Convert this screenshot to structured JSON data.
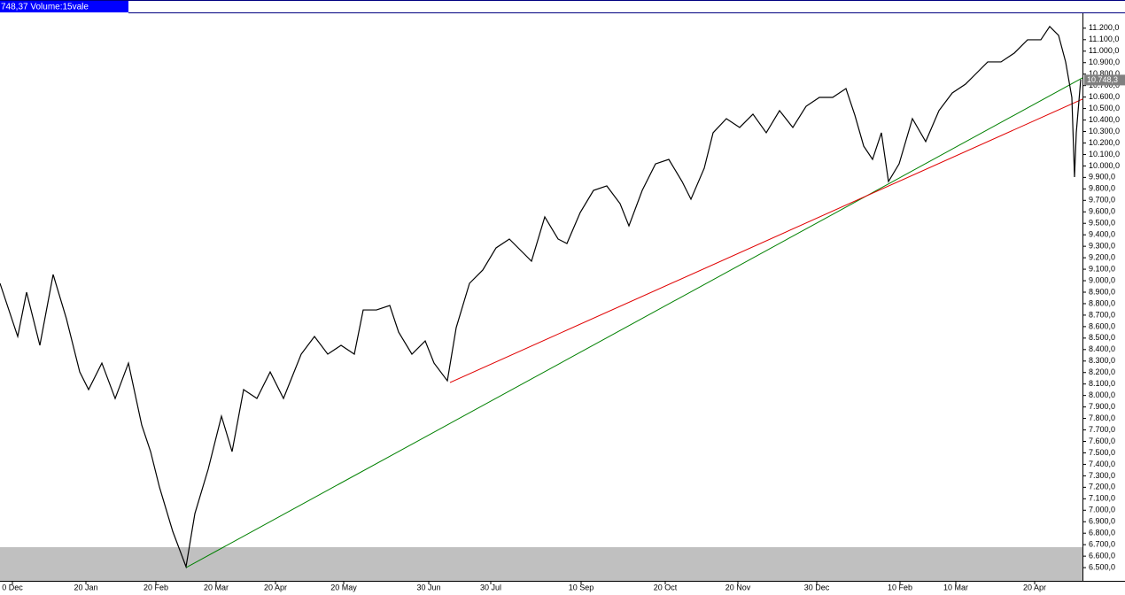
{
  "header": {
    "title": "748,37 Volume:15vale"
  },
  "chart_data": {
    "type": "line",
    "color": "#000000",
    "x": [
      0,
      4,
      8,
      12,
      18,
      24,
      30,
      36,
      40,
      46,
      52,
      58,
      64,
      68,
      72,
      78,
      84,
      88,
      94,
      100,
      104.8,
      110,
      116,
      122,
      128,
      136,
      142,
      148,
      154,
      160,
      164,
      170,
      176,
      180,
      186,
      192,
      196,
      202,
      206,
      212,
      218,
      224,
      230,
      236,
      240,
      246,
      252,
      256,
      262,
      268,
      274,
      280,
      284,
      290,
      296,
      302,
      308,
      312,
      318,
      322,
      328,
      334,
      340,
      346,
      352,
      358,
      364,
      370,
      376,
      382,
      386,
      390,
      394,
      398,
      401.2,
      406,
      412,
      418,
      424,
      430,
      436,
      440,
      446,
      452,
      458,
      464,
      470,
      474,
      478,
      481.2,
      484,
      485.2,
      486,
      488
    ],
    "values": [
      8977,
      8745,
      8514,
      8900,
      8437,
      9054,
      8668,
      8205,
      8051,
      8282,
      7974,
      8282,
      7742,
      7511,
      7202,
      6816,
      6508,
      6971,
      7357,
      7820,
      7511,
      8051,
      7974,
      8205,
      7974,
      8360,
      8514,
      8360,
      8437,
      8360,
      8745,
      8745,
      8784,
      8552,
      8360,
      8475,
      8282,
      8128,
      8591,
      8977,
      9093,
      9286,
      9363,
      9247,
      9170,
      9556,
      9363,
      9324,
      9594,
      9787,
      9826,
      9671,
      9478,
      9787,
      10018,
      10057,
      9864,
      9710,
      9980,
      10289,
      10412,
      10335,
      10451,
      10289,
      10482,
      10335,
      10520,
      10597,
      10597,
      10674,
      10443,
      10173,
      10057,
      10289,
      9864,
      10018,
      10412,
      10212,
      10482,
      10636,
      10713,
      10790,
      10906,
      10906,
      10983,
      11099,
      11099,
      11215,
      11138,
      10906,
      10597,
      9903,
      10289,
      10752
    ],
    "trendlines": [
      {
        "color": "#008000",
        "x": [
          84,
          488.8
        ],
        "values": [
          6500,
          10767
        ]
      },
      {
        "color": "#e00000",
        "x": [
          203.2,
          488.8
        ],
        "values": [
          8113,
          10582
        ]
      }
    ],
    "last_value_label": {
      "value": 10748.3,
      "label": "10.748,3"
    },
    "xlim": [
      0,
      488.8
    ],
    "ylim": [
      6385,
      11330
    ],
    "xticks": [
      {
        "value": 5.6,
        "label": "0 Dec"
      },
      {
        "value": 38.8,
        "label": "20 Jan"
      },
      {
        "value": 70.4,
        "label": "20 Feb"
      },
      {
        "value": 97.6,
        "label": "20 Mar"
      },
      {
        "value": 124.4,
        "label": "20 Apr"
      },
      {
        "value": 155.2,
        "label": "20 May"
      },
      {
        "value": 193.6,
        "label": "30 Jun"
      },
      {
        "value": 221.6,
        "label": "30 Jul"
      },
      {
        "value": 262.4,
        "label": "10 Sep"
      },
      {
        "value": 300.4,
        "label": "20 Oct"
      },
      {
        "value": 333.2,
        "label": "20 Nov"
      },
      {
        "value": 368.8,
        "label": "30 Dec"
      },
      {
        "value": 406.4,
        "label": "10 Feb"
      },
      {
        "value": 431.6,
        "label": "10 Mar"
      },
      {
        "value": 467.2,
        "label": "20 Apr"
      }
    ],
    "yticks": [
      {
        "value": 6500,
        "label": "6.500,0"
      },
      {
        "value": 6600,
        "label": "6.600,0"
      },
      {
        "value": 6700,
        "label": "6.700,0"
      },
      {
        "value": 6800,
        "label": "6.800,0"
      },
      {
        "value": 6900,
        "label": "6.900,0"
      },
      {
        "value": 7000,
        "label": "7.000,0"
      },
      {
        "value": 7100,
        "label": "7.100,0"
      },
      {
        "value": 7200,
        "label": "7.200,0"
      },
      {
        "value": 7300,
        "label": "7.300,0"
      },
      {
        "value": 7400,
        "label": "7.400,0"
      },
      {
        "value": 7500,
        "label": "7.500,0"
      },
      {
        "value": 7600,
        "label": "7.600,0"
      },
      {
        "value": 7700,
        "label": "7.700,0"
      },
      {
        "value": 7800,
        "label": "7.800,0"
      },
      {
        "value": 7900,
        "label": "7.900,0"
      },
      {
        "value": 8000,
        "label": "8.000,0"
      },
      {
        "value": 8100,
        "label": "8.100,0"
      },
      {
        "value": 8200,
        "label": "8.200,0"
      },
      {
        "value": 8300,
        "label": "8.300,0"
      },
      {
        "value": 8400,
        "label": "8.400,0"
      },
      {
        "value": 8500,
        "label": "8.500,0"
      },
      {
        "value": 8600,
        "label": "8.600,0"
      },
      {
        "value": 8700,
        "label": "8.700,0"
      },
      {
        "value": 8800,
        "label": "8.800,0"
      },
      {
        "value": 8900,
        "label": "8.900,0"
      },
      {
        "value": 9000,
        "label": "9.000,0"
      },
      {
        "value": 9100,
        "label": "9.100,0"
      },
      {
        "value": 9200,
        "label": "9.200,0"
      },
      {
        "value": 9300,
        "label": "9.300,0"
      },
      {
        "value": 9400,
        "label": "9.400,0"
      },
      {
        "value": 9500,
        "label": "9.500,0"
      },
      {
        "value": 9600,
        "label": "9.600,0"
      },
      {
        "value": 9700,
        "label": "9.700,0"
      },
      {
        "value": 9800,
        "label": "9.800,0"
      },
      {
        "value": 9900,
        "label": "9.900,0"
      },
      {
        "value": 10000,
        "label": "10.000,0"
      },
      {
        "value": 10100,
        "label": "10.100,0"
      },
      {
        "value": 10200,
        "label": "10.200,0"
      },
      {
        "value": 10300,
        "label": "10.300,0"
      },
      {
        "value": 10400,
        "label": "10.400,0"
      },
      {
        "value": 10500,
        "label": "10.500,0"
      },
      {
        "value": 10600,
        "label": "10.600,0"
      },
      {
        "value": 10700,
        "label": "10.700,0"
      },
      {
        "value": 10800,
        "label": "10.800,0"
      },
      {
        "value": 10900,
        "label": "10.900,0"
      },
      {
        "value": 11000,
        "label": "11.000,0"
      },
      {
        "value": 11100,
        "label": "11.100,0"
      },
      {
        "value": 11200,
        "label": "11.200,0"
      }
    ]
  }
}
